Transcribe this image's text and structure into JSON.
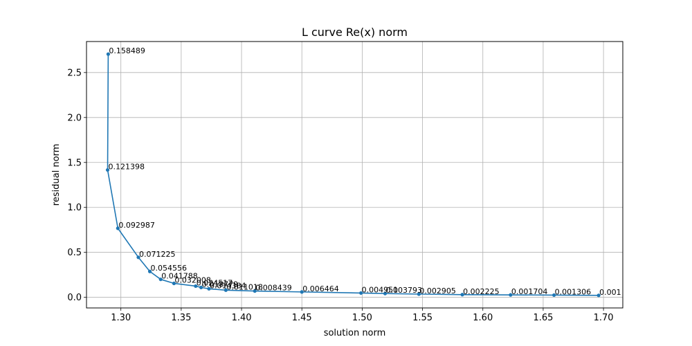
{
  "chart_data": {
    "type": "line",
    "title": "L curve Re(x) norm",
    "xlabel": "solution norm",
    "ylabel": "residual norm",
    "xlim": [
      1.2715,
      1.716
    ],
    "ylim": [
      -0.118,
      2.845
    ],
    "x_ticks": [
      "1.30",
      "1.35",
      "1.40",
      "1.45",
      "1.50",
      "1.55",
      "1.60",
      "1.65",
      "1.70"
    ],
    "x_tick_values": [
      1.3,
      1.35,
      1.4,
      1.45,
      1.5,
      1.55,
      1.6,
      1.65,
      1.7
    ],
    "y_ticks": [
      "0.0",
      "0.5",
      "1.0",
      "1.5",
      "2.0",
      "2.5"
    ],
    "y_tick_values": [
      0.0,
      0.5,
      1.0,
      1.5,
      2.0,
      2.5
    ],
    "grid": true,
    "line_color": "#1f77b4",
    "series": [
      {
        "points": [
          {
            "x": 1.2895,
            "y": 2.705,
            "label": "0.158489"
          },
          {
            "x": 1.289,
            "y": 1.417,
            "label": "0.121398"
          },
          {
            "x": 1.2975,
            "y": 0.768,
            "label": "0.092987"
          },
          {
            "x": 1.3145,
            "y": 0.445,
            "label": "0.071225"
          },
          {
            "x": 1.324,
            "y": 0.288,
            "label": "0.054556"
          },
          {
            "x": 1.333,
            "y": 0.2,
            "label": "0.041788"
          },
          {
            "x": 1.344,
            "y": 0.155,
            "label": "0.032008"
          },
          {
            "x": 1.362,
            "y": 0.125,
            "label": "0.024517"
          },
          {
            "x": 1.3665,
            "y": 0.11,
            "label": "0.018779"
          },
          {
            "x": 1.373,
            "y": 0.095,
            "label": "0.014384"
          },
          {
            "x": 1.387,
            "y": 0.08,
            "label": "0.011018"
          },
          {
            "x": 1.411,
            "y": 0.07,
            "label": "0.008439"
          },
          {
            "x": 1.45,
            "y": 0.06,
            "label": "0.006464"
          },
          {
            "x": 1.499,
            "y": 0.048,
            "label": "0.004951"
          },
          {
            "x": 1.519,
            "y": 0.042,
            "label": "0.003793"
          },
          {
            "x": 1.547,
            "y": 0.036,
            "label": "0.002905"
          },
          {
            "x": 1.583,
            "y": 0.03,
            "label": "0.002225"
          },
          {
            "x": 1.623,
            "y": 0.027,
            "label": "0.001704"
          },
          {
            "x": 1.659,
            "y": 0.025,
            "label": "0.001306"
          },
          {
            "x": 1.696,
            "y": 0.022,
            "label": "0.001"
          }
        ]
      }
    ]
  }
}
